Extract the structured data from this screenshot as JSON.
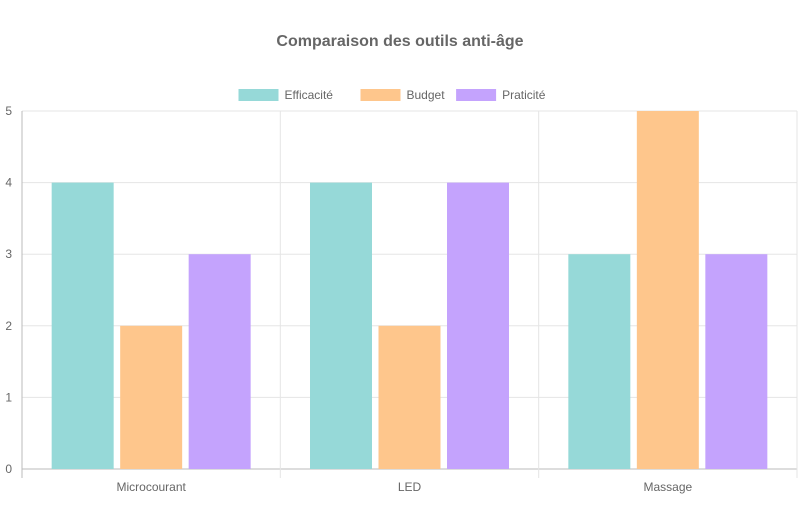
{
  "chart_data": {
    "type": "bar",
    "title": "Comparaison des outils anti-âge",
    "categories": [
      "Microcourant",
      "LED",
      "Massage"
    ],
    "series": [
      {
        "name": "Efficacité",
        "values": [
          4,
          4,
          3
        ],
        "color": "#96d9d8"
      },
      {
        "name": "Budget",
        "values": [
          2,
          2,
          5
        ],
        "color": "#fec68c"
      },
      {
        "name": "Praticité",
        "values": [
          3,
          4,
          3
        ],
        "color": "#c4a3fd"
      }
    ],
    "ylim": [
      0,
      5
    ],
    "yticks": [
      "0",
      "1",
      "2",
      "3",
      "4",
      "5"
    ],
    "grid": true,
    "legend": "top",
    "xlabel": "",
    "ylabel": ""
  }
}
